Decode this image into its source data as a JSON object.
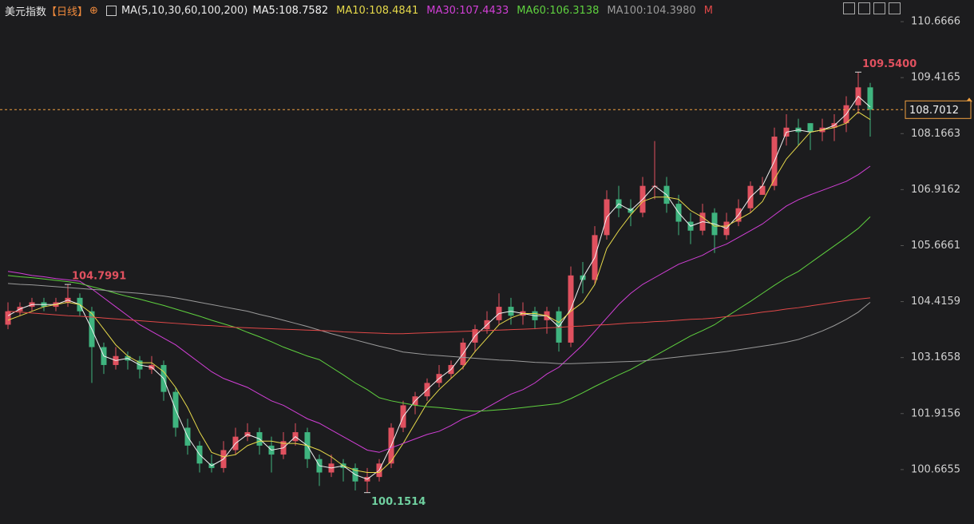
{
  "chart_data": {
    "type": "candlestick",
    "title": "美元指数",
    "period": "【日线】",
    "indicator": "MA(5,10,30,60,100,200)",
    "up_color": "#e0515f",
    "down_color": "#3fb47f",
    "open": [
      103.9,
      104.2,
      104.3,
      104.4,
      104.3,
      104.4,
      104.5,
      104.2,
      103.4,
      103.0,
      103.2,
      103.1,
      102.9,
      103.0,
      102.4,
      101.6,
      101.2,
      100.8,
      100.7,
      101.1,
      101.4,
      101.5,
      101.2,
      101.0,
      101.3,
      101.5,
      100.9,
      100.6,
      100.8,
      100.7,
      100.4,
      100.5,
      100.8,
      101.6,
      102.1,
      102.3,
      102.6,
      102.8,
      103.0,
      103.5,
      103.8,
      104.0,
      104.3,
      104.1,
      104.2,
      104.0,
      104.2,
      103.5,
      105.0,
      104.9,
      105.9,
      106.7,
      106.5,
      106.4,
      107.0,
      107.0,
      106.6,
      106.2,
      106.0,
      106.4,
      105.9,
      106.2,
      106.5,
      106.8,
      107.0,
      108.1,
      108.3,
      108.4,
      108.2,
      108.3,
      108.4,
      108.8,
      109.2
    ],
    "high": [
      104.4,
      104.4,
      104.5,
      104.5,
      104.5,
      104.7991,
      104.6,
      104.3,
      103.5,
      103.4,
      103.3,
      103.2,
      103.2,
      103.1,
      102.5,
      101.8,
      101.3,
      101.0,
      101.3,
      101.6,
      101.7,
      101.6,
      101.4,
      101.5,
      101.7,
      101.6,
      101.0,
      101.0,
      100.9,
      100.8,
      100.7,
      100.9,
      101.7,
      102.2,
      102.4,
      102.7,
      103.0,
      103.1,
      103.6,
      103.9,
      104.2,
      104.6,
      104.5,
      104.4,
      104.3,
      104.3,
      104.3,
      105.2,
      105.3,
      106.1,
      106.9,
      107.0,
      106.7,
      107.2,
      108.0,
      107.2,
      106.8,
      106.4,
      106.6,
      106.5,
      106.4,
      106.7,
      107.1,
      107.2,
      108.3,
      108.6,
      108.5,
      108.4,
      108.5,
      108.6,
      109.0,
      109.54,
      109.3
    ],
    "low": [
      103.8,
      104.1,
      104.2,
      104.2,
      104.2,
      104.3,
      104.1,
      102.6,
      102.8,
      102.9,
      102.9,
      102.7,
      102.8,
      102.2,
      101.4,
      101.0,
      100.6,
      100.6,
      100.6,
      101.0,
      101.3,
      101.0,
      100.6,
      100.9,
      101.2,
      100.7,
      100.3,
      100.5,
      100.4,
      100.2,
      100.1514,
      100.4,
      100.7,
      101.5,
      101.9,
      102.2,
      102.5,
      102.7,
      102.9,
      103.3,
      103.7,
      103.9,
      103.9,
      103.9,
      103.8,
      103.7,
      103.3,
      103.4,
      104.6,
      104.8,
      105.8,
      106.3,
      106.1,
      106.3,
      106.7,
      106.4,
      105.9,
      105.7,
      105.9,
      105.5,
      105.8,
      106.1,
      106.4,
      106.8,
      106.9,
      107.9,
      107.9,
      107.8,
      108.0,
      108.0,
      108.2,
      108.6,
      108.1
    ],
    "close": [
      104.2,
      104.3,
      104.4,
      104.3,
      104.4,
      104.5,
      104.2,
      103.4,
      103.0,
      103.2,
      103.1,
      102.9,
      103.0,
      102.4,
      101.6,
      101.2,
      100.8,
      100.7,
      101.1,
      101.4,
      101.5,
      101.2,
      101.0,
      101.3,
      101.5,
      100.9,
      100.6,
      100.8,
      100.7,
      100.4,
      100.5,
      100.8,
      101.6,
      102.1,
      102.3,
      102.6,
      102.8,
      103.0,
      103.5,
      103.8,
      104.0,
      104.3,
      104.1,
      104.2,
      104.0,
      104.2,
      103.5,
      105.0,
      104.9,
      105.9,
      106.7,
      106.5,
      106.4,
      107.0,
      107.0,
      106.6,
      106.2,
      106.0,
      106.4,
      105.9,
      106.2,
      106.5,
      107.0,
      107.0,
      108.1,
      108.3,
      108.2,
      108.2,
      108.3,
      108.4,
      108.8,
      109.2,
      108.7012
    ],
    "series": [
      {
        "name": "MA5:108.7582",
        "color": "#f2f2f2",
        "values": [
          104.1,
          104.25,
          104.35,
          104.35,
          104.35,
          104.45,
          104.35,
          103.8,
          103.2,
          103.1,
          103.15,
          103.0,
          102.95,
          102.7,
          102.0,
          101.4,
          101.0,
          100.75,
          100.9,
          101.25,
          101.45,
          101.35,
          101.1,
          101.15,
          101.4,
          101.2,
          100.75,
          100.7,
          100.75,
          100.55,
          100.45,
          100.65,
          101.2,
          101.85,
          102.2,
          102.45,
          102.7,
          102.9,
          103.25,
          103.65,
          103.9,
          104.15,
          104.2,
          104.15,
          104.1,
          104.1,
          103.85,
          104.25,
          104.95,
          105.4,
          106.3,
          106.6,
          106.45,
          106.7,
          107.0,
          106.8,
          106.4,
          106.1,
          106.2,
          106.15,
          106.05,
          106.35,
          106.75,
          107.0,
          107.55,
          108.2,
          108.25,
          108.2,
          108.25,
          108.35,
          108.6,
          109.0,
          108.76
        ]
      },
      {
        "name": "MA10:108.4841",
        "color": "#e6d94a",
        "values": [
          104.0,
          104.1,
          104.2,
          104.3,
          104.35,
          104.4,
          104.35,
          104.15,
          103.8,
          103.45,
          103.2,
          103.05,
          103.05,
          102.85,
          102.5,
          102.05,
          101.5,
          101.05,
          100.95,
          101.0,
          101.2,
          101.3,
          101.3,
          101.25,
          101.25,
          101.2,
          101.1,
          100.95,
          100.75,
          100.65,
          100.6,
          100.6,
          100.85,
          101.25,
          101.7,
          102.15,
          102.45,
          102.7,
          102.95,
          103.3,
          103.6,
          103.9,
          104.05,
          104.15,
          104.15,
          104.1,
          103.95,
          104.2,
          104.4,
          104.8,
          105.6,
          106.0,
          106.35,
          106.65,
          106.75,
          106.75,
          106.7,
          106.45,
          106.3,
          106.1,
          106.1,
          106.25,
          106.4,
          106.65,
          107.15,
          107.6,
          107.9,
          108.2,
          108.25,
          108.3,
          108.4,
          108.65,
          108.48
        ]
      },
      {
        "name": "MA30:107.4433",
        "color": "#d13fd6",
        "values": [
          105.09,
          105.05,
          105.0,
          104.97,
          104.93,
          104.9,
          104.87,
          104.7,
          104.5,
          104.3,
          104.1,
          103.9,
          103.75,
          103.6,
          103.45,
          103.25,
          103.05,
          102.85,
          102.7,
          102.6,
          102.5,
          102.35,
          102.2,
          102.1,
          101.95,
          101.8,
          101.7,
          101.55,
          101.4,
          101.25,
          101.1,
          101.05,
          101.15,
          101.25,
          101.35,
          101.45,
          101.52,
          101.65,
          101.8,
          101.9,
          102.05,
          102.2,
          102.35,
          102.45,
          102.6,
          102.8,
          102.95,
          103.2,
          103.45,
          103.75,
          104.05,
          104.35,
          104.6,
          104.8,
          104.95,
          105.1,
          105.25,
          105.35,
          105.45,
          105.6,
          105.7,
          105.85,
          106.0,
          106.15,
          106.35,
          106.55,
          106.69,
          106.8,
          106.9,
          107.0,
          107.1,
          107.25,
          107.44
        ]
      },
      {
        "name": "MA60:106.3138",
        "color": "#5fd13f",
        "values": [
          105.0,
          104.97,
          104.95,
          104.92,
          104.89,
          104.86,
          104.82,
          104.75,
          104.68,
          104.6,
          104.53,
          104.47,
          104.4,
          104.33,
          104.25,
          104.17,
          104.09,
          104.0,
          103.92,
          103.84,
          103.73,
          103.63,
          103.52,
          103.4,
          103.3,
          103.2,
          103.12,
          102.95,
          102.78,
          102.6,
          102.45,
          102.27,
          102.2,
          102.15,
          102.1,
          102.07,
          102.05,
          102.02,
          101.99,
          101.97,
          101.98,
          102.0,
          102.02,
          102.05,
          102.08,
          102.11,
          102.14,
          102.25,
          102.38,
          102.52,
          102.65,
          102.78,
          102.9,
          103.05,
          103.2,
          103.35,
          103.5,
          103.65,
          103.77,
          103.9,
          104.08,
          104.25,
          104.42,
          104.6,
          104.78,
          104.95,
          105.09,
          105.28,
          105.47,
          105.66,
          105.85,
          106.05,
          106.31
        ]
      },
      {
        "name": "MA100:104.3980",
        "color": "#9a9a9a",
        "values": [
          104.82,
          104.8,
          104.79,
          104.77,
          104.75,
          104.73,
          104.71,
          104.69,
          104.67,
          104.64,
          104.62,
          104.6,
          104.57,
          104.54,
          104.5,
          104.45,
          104.4,
          104.35,
          104.3,
          104.25,
          104.2,
          104.13,
          104.07,
          104.0,
          103.93,
          103.86,
          103.78,
          103.7,
          103.63,
          103.56,
          103.49,
          103.42,
          103.36,
          103.29,
          103.26,
          103.23,
          103.21,
          103.19,
          103.17,
          103.15,
          103.13,
          103.11,
          103.1,
          103.08,
          103.06,
          103.05,
          103.03,
          103.03,
          103.04,
          103.05,
          103.06,
          103.07,
          103.08,
          103.09,
          103.12,
          103.15,
          103.18,
          103.21,
          103.24,
          103.27,
          103.3,
          103.34,
          103.38,
          103.42,
          103.46,
          103.51,
          103.57,
          103.66,
          103.76,
          103.88,
          104.02,
          104.18,
          104.4
        ]
      },
      {
        "name": "M",
        "color": "#e04848",
        "values": [
          104.2,
          104.18,
          104.16,
          104.14,
          104.12,
          104.1,
          104.09,
          104.07,
          104.05,
          104.03,
          104.01,
          103.99,
          103.97,
          103.95,
          103.93,
          103.91,
          103.89,
          103.88,
          103.86,
          103.84,
          103.83,
          103.82,
          103.81,
          103.8,
          103.79,
          103.78,
          103.77,
          103.76,
          103.74,
          103.73,
          103.72,
          103.71,
          103.7,
          103.7,
          103.71,
          103.72,
          103.73,
          103.74,
          103.75,
          103.76,
          103.77,
          103.78,
          103.79,
          103.8,
          103.81,
          103.83,
          103.84,
          103.86,
          103.87,
          103.89,
          103.9,
          103.92,
          103.94,
          103.95,
          103.97,
          103.98,
          104.0,
          104.02,
          104.03,
          104.05,
          104.08,
          104.11,
          104.14,
          104.18,
          104.21,
          104.25,
          104.28,
          104.32,
          104.36,
          104.4,
          104.44,
          104.47,
          104.5
        ]
      }
    ],
    "ylim": [
      99.45,
      111.15
    ],
    "yticks": [
      100.6655,
      101.9156,
      103.1658,
      104.4159,
      105.6661,
      106.9162,
      108.1663,
      109.4165,
      110.6666
    ],
    "grid": false,
    "last_price": 108.7012,
    "last_price_color": "#f0a040",
    "annotations": [
      {
        "value": 109.54,
        "label": "109.5400",
        "color": "#e0515f"
      },
      {
        "value": 104.7991,
        "label": "104.7991",
        "color": "#e0515f"
      },
      {
        "value": 100.1514,
        "label": "100.1514",
        "color": "#6fcf9f"
      }
    ]
  }
}
